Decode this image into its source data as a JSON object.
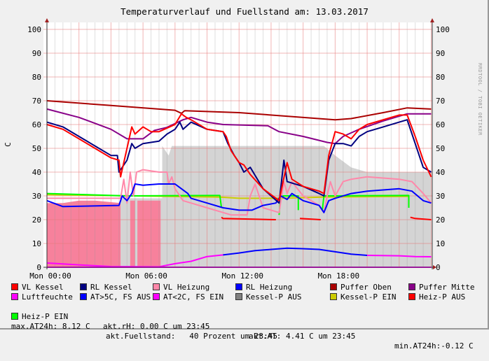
{
  "title": "Temperaturverlauf und Fuellstand am: 13.03.2017",
  "watermark": "RRDTOOL / TOBI OETIKER",
  "legend_rows": [
    [
      {
        "label": "VL Kessel",
        "color": "#ff0000"
      },
      {
        "label": "RL Kessel",
        "color": "#000080"
      },
      {
        "label": "VL Heizung",
        "color": "#ff88aa"
      },
      {
        "label": "RL Heizung",
        "color": "#0000ff"
      },
      {
        "label": "Puffer Oben",
        "color": "#aa0000"
      },
      {
        "label": "Puffer Mitte",
        "color": "#880088"
      }
    ],
    [
      {
        "label": "Luftfeuchte",
        "color": "#ff00ff"
      },
      {
        "label": "AT>5C, FS AUS",
        "color": "#0000ff"
      },
      {
        "label": "AT<2C, FS EIN",
        "color": "#ff00ff"
      },
      {
        "label": "Kessel-P AUS",
        "color": "#808080"
      },
      {
        "label": "Kessel-P EIN",
        "color": "#cccc00"
      },
      {
        "label": "Heiz-P AUS",
        "color": "#ff0000"
      }
    ]
  ],
  "legend_row3": {
    "item": {
      "label": "Heiz-P EIN",
      "color": "#00ff00"
    },
    "rh": "akt.rH: 0.00 C um 23:45",
    "at": "akt.AT: 4.41 C um 23:45",
    "min": "min.AT24h:-0.12 C"
  },
  "legend_row4": {
    "max": "max.AT24h: 8.12 C",
    "fuell": "akt.Fuellstand:   40 Prozent um 23:45"
  },
  "chart_data": {
    "type": "line",
    "title": "Temperaturverlauf und Fuellstand am: 13.03.2017",
    "ylabel": "C",
    "ylim": [
      0,
      100
    ],
    "xlim_hours": [
      0,
      24
    ],
    "yticks": [
      "0",
      "10",
      "20",
      "30",
      "40",
      "50",
      "60",
      "70",
      "80",
      "90",
      "100"
    ],
    "xticks": [
      {
        "h": 0,
        "label": "Mon 00:00"
      },
      {
        "h": 6,
        "label": "Mon 06:00"
      },
      {
        "h": 12,
        "label": "Mon 12:00"
      },
      {
        "h": 18,
        "label": "Mon 18:00"
      }
    ],
    "grid": true,
    "areas": [
      {
        "name": "Fuellstand",
        "color": "#d4d4d4",
        "points": [
          [
            4.6,
            0
          ],
          [
            4.6,
            29
          ],
          [
            7.2,
            29
          ],
          [
            7.2,
            51
          ],
          [
            7.6,
            47
          ],
          [
            7.8,
            51
          ],
          [
            17.3,
            51
          ],
          [
            18,
            47
          ],
          [
            19,
            42
          ],
          [
            20,
            40
          ],
          [
            24,
            40
          ],
          [
            24,
            0
          ]
        ]
      },
      {
        "name": "AT<2C, FS EIN",
        "color": "#f7819c",
        "segments": [
          [
            [
              0,
              27
            ],
            [
              1,
              27
            ],
            [
              2,
              28
            ],
            [
              3,
              28
            ],
            [
              4.6,
              27
            ]
          ],
          [
            [
              5.2,
              28
            ],
            [
              5.5,
              28
            ]
          ],
          [
            [
              5.65,
              28
            ],
            [
              7.1,
              28
            ]
          ]
        ]
      }
    ],
    "series": [
      {
        "name": "Puffer Oben",
        "color": "#aa0000",
        "points": [
          [
            0,
            70
          ],
          [
            4,
            68
          ],
          [
            8,
            66
          ],
          [
            8.4,
            64.7
          ],
          [
            8.6,
            65.8
          ],
          [
            12,
            65
          ],
          [
            18,
            62
          ],
          [
            19,
            62.5
          ],
          [
            21,
            65
          ],
          [
            22.5,
            67
          ],
          [
            24,
            66.5
          ]
        ]
      },
      {
        "name": "Puffer Mitte",
        "color": "#880088",
        "points": [
          [
            0,
            66.5
          ],
          [
            2,
            63
          ],
          [
            4,
            58
          ],
          [
            5,
            54
          ],
          [
            6,
            54
          ],
          [
            6.7,
            57.5
          ],
          [
            7.5,
            58.8
          ],
          [
            8.5,
            62
          ],
          [
            9,
            63
          ],
          [
            10,
            61
          ],
          [
            11,
            60
          ],
          [
            13.8,
            59.5
          ],
          [
            14.5,
            57
          ],
          [
            16,
            55
          ],
          [
            17.5,
            52.5
          ],
          [
            18,
            52
          ],
          [
            18.5,
            55
          ],
          [
            19.5,
            58
          ],
          [
            21,
            61.5
          ],
          [
            22.5,
            64.5
          ],
          [
            24,
            64.5
          ]
        ]
      },
      {
        "name": "Kessel-P EIN",
        "color": "#cccc00",
        "points": [
          [
            0,
            30.5
          ],
          [
            10.8,
            29.5
          ],
          [
            12,
            29
          ],
          [
            14.5,
            29
          ],
          [
            17.2,
            29.5
          ],
          [
            22.6,
            29.8
          ]
        ]
      },
      {
        "name": "Heiz-P EIN",
        "color": "#00ff00",
        "segments": [
          [
            [
              0,
              31
            ],
            [
              5,
              30
            ],
            [
              10.8,
              30.2
            ],
            [
              10.9,
              25
            ]
          ],
          [
            [
              14.5,
              22
            ],
            [
              14.6,
              30
            ],
            [
              15.7,
              30
            ],
            [
              15.7,
              24
            ]
          ],
          [
            [
              17.2,
              24
            ],
            [
              17.3,
              30
            ],
            [
              22.6,
              30.2
            ],
            [
              22.6,
              25
            ]
          ]
        ]
      },
      {
        "name": "Heiz-P AUS",
        "color": "#ff0000",
        "segments": [
          [
            [
              10.9,
              21
            ],
            [
              11,
              20.5
            ],
            [
              14.3,
              20
            ]
          ],
          [
            [
              15.8,
              20.5
            ],
            [
              17.1,
              20
            ]
          ],
          [
            [
              22.7,
              21
            ],
            [
              23,
              20.5
            ],
            [
              24,
              20
            ]
          ]
        ]
      },
      {
        "name": "VL Heizung",
        "color": "#ff88aa",
        "points": [
          [
            0,
            29
          ],
          [
            4.6,
            29
          ],
          [
            4.8,
            37
          ],
          [
            5,
            27
          ],
          [
            5.2,
            40
          ],
          [
            5.4,
            30
          ],
          [
            5.6,
            40
          ],
          [
            6,
            41
          ],
          [
            7,
            40
          ],
          [
            7.5,
            40
          ],
          [
            7.6,
            35
          ],
          [
            7.8,
            38
          ],
          [
            8,
            33
          ],
          [
            8.5,
            28
          ],
          [
            9,
            27
          ],
          [
            10,
            25
          ],
          [
            11.5,
            22
          ],
          [
            12.5,
            22
          ],
          [
            12.7,
            30
          ],
          [
            13,
            35
          ],
          [
            13.5,
            25
          ],
          [
            14.5,
            23
          ],
          [
            14.8,
            36
          ],
          [
            15,
            31
          ],
          [
            15.3,
            36
          ],
          [
            16,
            30
          ],
          [
            17,
            26
          ],
          [
            17.3,
            23
          ],
          [
            17.5,
            30
          ],
          [
            17.7,
            36
          ],
          [
            18,
            30
          ],
          [
            18.5,
            36
          ],
          [
            19,
            37
          ],
          [
            20,
            38
          ],
          [
            22,
            37
          ],
          [
            22.8,
            36
          ],
          [
            23.5,
            31
          ],
          [
            24,
            27
          ]
        ]
      },
      {
        "name": "RL Heizung",
        "color": "#0000ff",
        "points": [
          [
            0,
            28
          ],
          [
            1,
            25.5
          ],
          [
            4.5,
            26
          ],
          [
            4.7,
            30
          ],
          [
            5,
            28
          ],
          [
            5.3,
            31
          ],
          [
            5.5,
            35
          ],
          [
            6,
            34.5
          ],
          [
            7,
            35
          ],
          [
            8,
            35
          ],
          [
            8.4,
            33
          ],
          [
            8.8,
            31
          ],
          [
            9,
            29
          ],
          [
            10,
            27
          ],
          [
            11,
            25
          ],
          [
            12,
            24
          ],
          [
            12.8,
            24
          ],
          [
            13.5,
            26
          ],
          [
            14.3,
            27
          ],
          [
            14.6,
            30
          ],
          [
            15,
            28.5
          ],
          [
            15.3,
            31
          ],
          [
            16,
            28
          ],
          [
            17,
            26
          ],
          [
            17.3,
            23
          ],
          [
            17.6,
            28
          ],
          [
            18,
            29
          ],
          [
            19,
            31
          ],
          [
            20,
            32
          ],
          [
            22,
            33
          ],
          [
            22.8,
            32
          ],
          [
            23.5,
            28
          ],
          [
            24,
            27
          ]
        ]
      },
      {
        "name": "RL Kessel",
        "color": "#000080",
        "points": [
          [
            0,
            61
          ],
          [
            1,
            59
          ],
          [
            2,
            55
          ],
          [
            3,
            51
          ],
          [
            4,
            47
          ],
          [
            4.4,
            47
          ],
          [
            4.5,
            40
          ],
          [
            5,
            45
          ],
          [
            5.3,
            52
          ],
          [
            5.5,
            50
          ],
          [
            6,
            52
          ],
          [
            7,
            53
          ],
          [
            7.5,
            56
          ],
          [
            8,
            58
          ],
          [
            8.3,
            61
          ],
          [
            8.5,
            58
          ],
          [
            9,
            61
          ],
          [
            10,
            58
          ],
          [
            11,
            57
          ],
          [
            11.3,
            52
          ],
          [
            11.7,
            47
          ],
          [
            12,
            44
          ],
          [
            12.3,
            40
          ],
          [
            12.7,
            42
          ],
          [
            13.5,
            33
          ],
          [
            14.5,
            27
          ],
          [
            14.8,
            45
          ],
          [
            15,
            36
          ],
          [
            16,
            34
          ],
          [
            17,
            31
          ],
          [
            17.3,
            30
          ],
          [
            17.6,
            45
          ],
          [
            18,
            52
          ],
          [
            18.5,
            52
          ],
          [
            19,
            51
          ],
          [
            19.5,
            55
          ],
          [
            20,
            57
          ],
          [
            21,
            59
          ],
          [
            22,
            61
          ],
          [
            22.5,
            62
          ],
          [
            23,
            52
          ],
          [
            23.5,
            42
          ],
          [
            24,
            40
          ]
        ]
      },
      {
        "name": "VL Kessel",
        "color": "#ff0000",
        "points": [
          [
            0,
            60
          ],
          [
            1,
            58
          ],
          [
            2,
            54
          ],
          [
            3,
            50
          ],
          [
            4,
            46
          ],
          [
            4.5,
            45
          ],
          [
            4.6,
            38
          ],
          [
            5,
            50
          ],
          [
            5.3,
            59
          ],
          [
            5.5,
            56
          ],
          [
            6,
            59
          ],
          [
            6.5,
            57
          ],
          [
            7,
            57
          ],
          [
            8,
            60
          ],
          [
            8.4,
            64.5
          ],
          [
            8.7,
            63
          ],
          [
            9,
            62
          ],
          [
            10,
            58
          ],
          [
            11,
            57
          ],
          [
            11.2,
            55
          ],
          [
            11.5,
            49
          ],
          [
            12,
            44
          ],
          [
            12.3,
            43
          ],
          [
            12.7,
            39
          ],
          [
            13.5,
            33
          ],
          [
            14.5,
            28
          ],
          [
            15,
            44
          ],
          [
            15.3,
            37
          ],
          [
            16,
            34
          ],
          [
            17,
            32
          ],
          [
            17.3,
            31
          ],
          [
            17.6,
            47
          ],
          [
            18,
            57
          ],
          [
            18.5,
            56
          ],
          [
            19,
            54
          ],
          [
            19.5,
            58
          ],
          [
            20,
            60
          ],
          [
            21,
            62
          ],
          [
            22,
            64
          ],
          [
            22.5,
            64
          ],
          [
            23,
            55
          ],
          [
            23.5,
            45
          ],
          [
            24,
            38
          ]
        ]
      },
      {
        "name": "AT<2C",
        "color": "#ff00ff",
        "points": [
          [
            0,
            1.8
          ],
          [
            2,
            1
          ],
          [
            4,
            0.3
          ],
          [
            7,
            0.2
          ],
          [
            8,
            1.5
          ],
          [
            9,
            2.5
          ],
          [
            10,
            4.5
          ],
          [
            11,
            5.2
          ]
        ]
      },
      {
        "name": "AT>5C",
        "color": "#0000ff",
        "points": [
          [
            11,
            5.2
          ],
          [
            12,
            6
          ],
          [
            13,
            7
          ],
          [
            14,
            7.5
          ],
          [
            15,
            8
          ],
          [
            16,
            7.8
          ],
          [
            17,
            7.5
          ],
          [
            18,
            6.5
          ],
          [
            19,
            5.5
          ],
          [
            20,
            5
          ]
        ]
      },
      {
        "name": "AT",
        "color": "#ff00ff",
        "points": [
          [
            20,
            5
          ],
          [
            22,
            4.8
          ],
          [
            23,
            4.5
          ],
          [
            24,
            4.4
          ]
        ]
      },
      {
        "name": "Luftfeuchte",
        "color": "#ff00ff",
        "points": [
          [
            0,
            0
          ],
          [
            24,
            0
          ]
        ]
      }
    ]
  }
}
